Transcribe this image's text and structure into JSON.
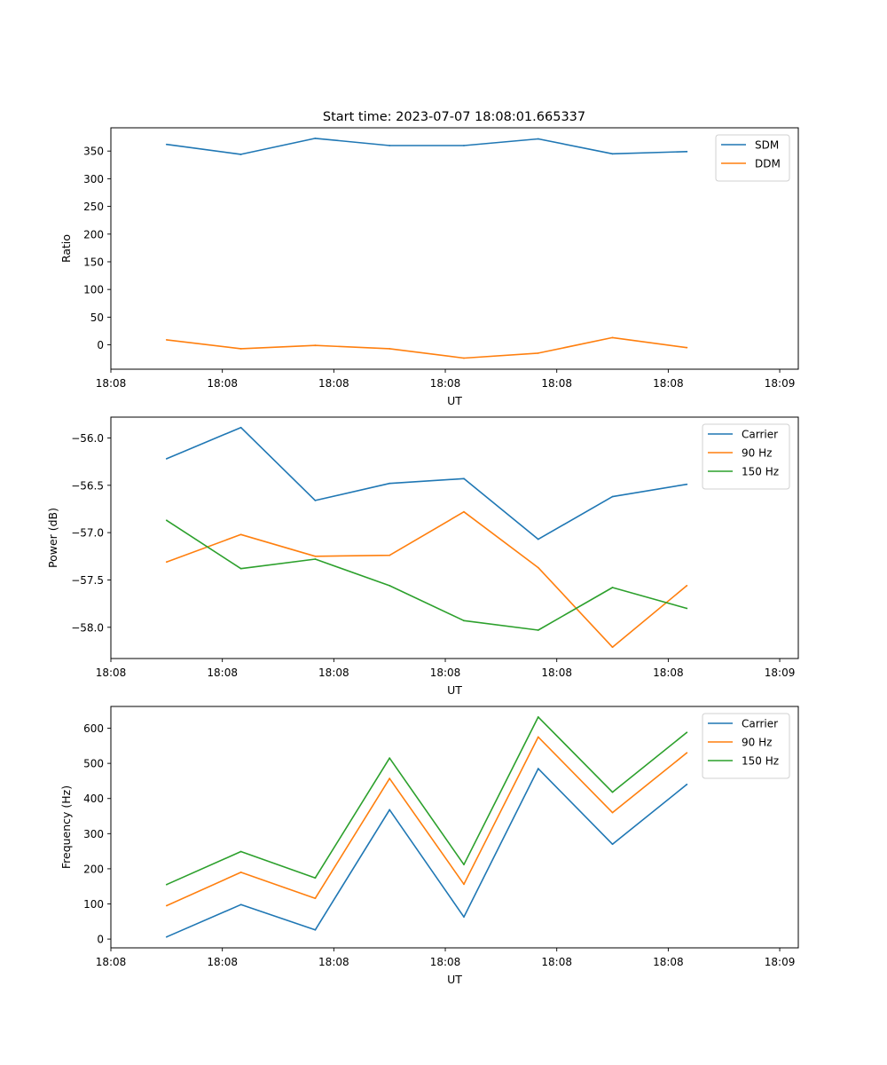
{
  "figure_title": "Start time: 2023-07-07 18:08:01.665337",
  "chart_data": [
    {
      "type": "line",
      "title": "Start time: 2023-07-07 18:08:01.665337",
      "xlabel": "UT",
      "ylabel": "Ratio",
      "x": [
        0,
        1,
        2,
        3,
        4,
        5,
        6,
        7
      ],
      "xlim": [
        -0.75,
        8.5
      ],
      "xticks": [
        -0.75,
        0.75,
        2.25,
        3.75,
        5.25,
        6.75,
        8.25
      ],
      "xtick_labels": [
        "18:08",
        "18:08",
        "18:08",
        "18:08",
        "18:08",
        "18:08",
        "18:09"
      ],
      "ylim": [
        -44,
        392
      ],
      "yticks": [
        0,
        50,
        100,
        150,
        200,
        250,
        300,
        350
      ],
      "ytick_labels": [
        "0",
        "50",
        "100",
        "150",
        "200",
        "250",
        "300",
        "350"
      ],
      "legend_position": "top-right",
      "series": [
        {
          "name": "SDM",
          "color": "#1f77b4",
          "values": [
            362,
            344,
            373,
            360,
            360,
            372,
            345,
            349
          ]
        },
        {
          "name": "DDM",
          "color": "#ff7f0e",
          "values": [
            9,
            -7,
            -1,
            -7,
            -24,
            -15,
            13,
            -5
          ]
        }
      ]
    },
    {
      "type": "line",
      "title": "",
      "xlabel": "UT",
      "ylabel": "Power (dB)",
      "x": [
        0,
        1,
        2,
        3,
        4,
        5,
        6,
        7
      ],
      "xlim": [
        -0.75,
        8.5
      ],
      "xticks": [
        -0.75,
        0.75,
        2.25,
        3.75,
        5.25,
        6.75,
        8.25
      ],
      "xtick_labels": [
        "18:08",
        "18:08",
        "18:08",
        "18:08",
        "18:08",
        "18:08",
        "18:09"
      ],
      "ylim": [
        -58.33,
        -55.78
      ],
      "yticks": [
        -58.0,
        -57.5,
        -57.0,
        -56.5,
        -56.0
      ],
      "ytick_labels": [
        "−58.0",
        "−57.5",
        "−57.0",
        "−56.5",
        "−56.0"
      ],
      "legend_position": "top-right",
      "series": [
        {
          "name": "Carrier",
          "color": "#1f77b4",
          "values": [
            -56.22,
            -55.89,
            -56.66,
            -56.48,
            -56.43,
            -57.07,
            -56.62,
            -56.49
          ]
        },
        {
          "name": "90 Hz",
          "color": "#ff7f0e",
          "values": [
            -57.31,
            -57.02,
            -57.25,
            -57.24,
            -56.78,
            -57.37,
            -58.21,
            -57.56
          ]
        },
        {
          "name": "150 Hz",
          "color": "#2ca02c",
          "values": [
            -56.87,
            -57.38,
            -57.28,
            -57.56,
            -57.93,
            -58.03,
            -57.58,
            -57.8
          ]
        }
      ]
    },
    {
      "type": "line",
      "title": "",
      "xlabel": "UT",
      "ylabel": "Frequency (Hz)",
      "x": [
        0,
        1,
        2,
        3,
        4,
        5,
        6,
        7
      ],
      "xlim": [
        -0.75,
        8.5
      ],
      "xticks": [
        -0.75,
        0.75,
        2.25,
        3.75,
        5.25,
        6.75,
        8.25
      ],
      "xtick_labels": [
        "18:08",
        "18:08",
        "18:08",
        "18:08",
        "18:08",
        "18:08",
        "18:09"
      ],
      "ylim": [
        -25,
        662
      ],
      "yticks": [
        0,
        100,
        200,
        300,
        400,
        500,
        600
      ],
      "ytick_labels": [
        "0",
        "100",
        "200",
        "300",
        "400",
        "500",
        "600"
      ],
      "legend_position": "top-right",
      "series": [
        {
          "name": "Carrier",
          "color": "#1f77b4",
          "values": [
            6,
            98,
            26,
            368,
            63,
            485,
            270,
            440
          ]
        },
        {
          "name": "90 Hz",
          "color": "#ff7f0e",
          "values": [
            95,
            190,
            116,
            457,
            156,
            575,
            360,
            530
          ]
        },
        {
          "name": "150 Hz",
          "color": "#2ca02c",
          "values": [
            155,
            249,
            174,
            515,
            212,
            632,
            418,
            588
          ]
        }
      ]
    }
  ]
}
